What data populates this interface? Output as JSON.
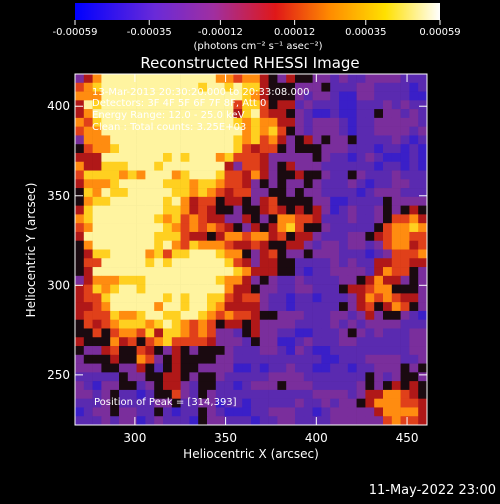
{
  "colorbar": {
    "ticks": [
      "-0.00059",
      "-0.00035",
      "-0.00012",
      "0.00012",
      "0.00035",
      "0.00059"
    ],
    "tick_values": [
      -0.00059,
      -0.00035,
      -0.00012,
      0.00012,
      0.00035,
      0.00059
    ],
    "unit_label": "(photons cm⁻² s⁻¹ asec⁻²)",
    "colors": [
      "#0000ff",
      "#6a2ad8",
      "#a02fa0",
      "#e01818",
      "#ff8c00",
      "#ffe000",
      "#ffffff"
    ]
  },
  "chart_data": {
    "type": "heatmap",
    "title": "Reconstructed RHESSI Image",
    "xlabel": "Heliocentric X (arcsec)",
    "ylabel": "Heliocentric Y (arcsec)",
    "xlim": [
      267,
      461
    ],
    "ylim": [
      222,
      418
    ],
    "xticks": [
      300,
      350,
      400,
      450
    ],
    "yticks": [
      250,
      300,
      350,
      400
    ],
    "peak": [
      314,
      393
    ],
    "annotations": [
      "13-Mar-2013 20:30:20.000 to 20:33:08.000",
      "Detectors: 3F 4F 5F 6F 7F 8F, Att 0",
      "Energy Range: 12.0 - 25.0 keV",
      "Clean : Total counts: 3.25E+03"
    ],
    "peak_label": "Position of Peak = [314,393]"
  },
  "footer": {
    "timestamp": "11-May-2022 23:00"
  }
}
